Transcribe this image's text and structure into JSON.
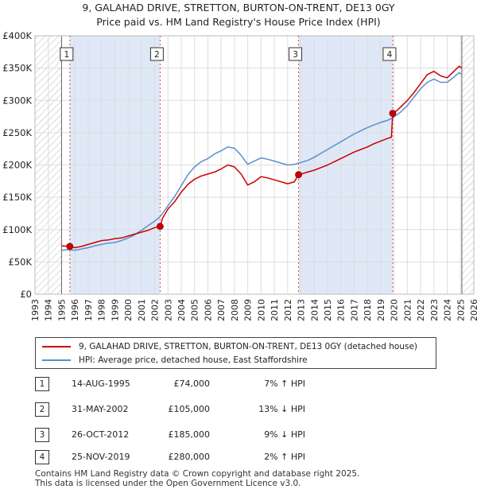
{
  "header": {
    "title": "9, GALAHAD DRIVE, STRETTON, BURTON-ON-TRENT, DE13 0GY",
    "subtitle": "Price paid vs. HM Land Registry's House Price Index (HPI)"
  },
  "colors": {
    "property": "#cc0000",
    "hpi": "#5b8fd0",
    "grid": "#dddddd",
    "shade": "#dfe8f6",
    "marker_line": "#dd4444"
  },
  "chart_data": {
    "type": "line",
    "title": "9, GALAHAD DRIVE, STRETTON, BURTON-ON-TRENT, DE13 0GY",
    "xlim": [
      1993,
      2026
    ],
    "ylim": [
      0,
      400000
    ],
    "x_ticks": [
      "1993",
      "1994",
      "1995",
      "1996",
      "1997",
      "1998",
      "1999",
      "2000",
      "2001",
      "2002",
      "2003",
      "2004",
      "2005",
      "2006",
      "2007",
      "2008",
      "2009",
      "2010",
      "2011",
      "2012",
      "2013",
      "2014",
      "2015",
      "2016",
      "2017",
      "2018",
      "2019",
      "2020",
      "2021",
      "2022",
      "2023",
      "2024",
      "2025",
      "2026"
    ],
    "y_ticks": [
      {
        "value": 0,
        "label": "£0"
      },
      {
        "value": 50000,
        "label": "£50K"
      },
      {
        "value": 100000,
        "label": "£100K"
      },
      {
        "value": 150000,
        "label": "£150K"
      },
      {
        "value": 200000,
        "label": "£200K"
      },
      {
        "value": 250000,
        "label": "£250K"
      },
      {
        "value": 300000,
        "label": "£300K"
      },
      {
        "value": 350000,
        "label": "£350K"
      },
      {
        "value": 400000,
        "label": "£400K"
      }
    ],
    "hatched_ranges": [
      [
        1993,
        1995.0
      ],
      [
        2025.1,
        2026
      ]
    ],
    "shaded_ranges": [
      [
        1995.62,
        2002.41
      ],
      [
        2012.82,
        2019.9
      ]
    ],
    "series": [
      {
        "name": "9, GALAHAD DRIVE, STRETTON, BURTON-ON-TRENT, DE13 0GY (detached house)",
        "color": "#cc0000",
        "points": [
          [
            1995.0,
            75000
          ],
          [
            1995.62,
            74000
          ],
          [
            1996.0,
            72000
          ],
          [
            1996.5,
            74000
          ],
          [
            1997.0,
            77000
          ],
          [
            1997.5,
            80000
          ],
          [
            1998.0,
            83000
          ],
          [
            1998.5,
            84000
          ],
          [
            1999.0,
            86000
          ],
          [
            1999.5,
            87000
          ],
          [
            2000.0,
            90000
          ],
          [
            2000.5,
            93000
          ],
          [
            2001.0,
            96000
          ],
          [
            2001.5,
            99000
          ],
          [
            2002.0,
            103000
          ],
          [
            2002.41,
            105000
          ],
          [
            2002.6,
            118000
          ],
          [
            2003.0,
            132000
          ],
          [
            2003.5,
            143000
          ],
          [
            2004.0,
            158000
          ],
          [
            2004.5,
            170000
          ],
          [
            2005.0,
            178000
          ],
          [
            2005.5,
            183000
          ],
          [
            2006.0,
            186000
          ],
          [
            2006.5,
            189000
          ],
          [
            2007.0,
            194000
          ],
          [
            2007.5,
            200000
          ],
          [
            2008.0,
            197000
          ],
          [
            2008.5,
            186000
          ],
          [
            2009.0,
            169000
          ],
          [
            2009.5,
            174000
          ],
          [
            2010.0,
            182000
          ],
          [
            2010.5,
            180000
          ],
          [
            2011.0,
            177000
          ],
          [
            2011.5,
            174000
          ],
          [
            2012.0,
            171000
          ],
          [
            2012.5,
            174000
          ],
          [
            2012.82,
            185000
          ],
          [
            2013.0,
            186000
          ],
          [
            2013.5,
            189000
          ],
          [
            2014.0,
            192000
          ],
          [
            2014.5,
            196000
          ],
          [
            2015.0,
            200000
          ],
          [
            2015.5,
            205000
          ],
          [
            2016.0,
            210000
          ],
          [
            2016.5,
            215000
          ],
          [
            2017.0,
            220000
          ],
          [
            2017.5,
            224000
          ],
          [
            2018.0,
            228000
          ],
          [
            2018.5,
            233000
          ],
          [
            2019.0,
            237000
          ],
          [
            2019.5,
            241000
          ],
          [
            2019.8,
            243000
          ],
          [
            2019.9,
            280000
          ],
          [
            2020.2,
            284000
          ],
          [
            2020.6,
            292000
          ],
          [
            2021.0,
            300000
          ],
          [
            2021.5,
            312000
          ],
          [
            2022.0,
            326000
          ],
          [
            2022.5,
            340000
          ],
          [
            2023.0,
            345000
          ],
          [
            2023.5,
            338000
          ],
          [
            2024.0,
            335000
          ],
          [
            2024.5,
            345000
          ],
          [
            2024.9,
            353000
          ],
          [
            2025.1,
            350000
          ]
        ]
      },
      {
        "name": "HPI: Average price, detached house, East Staffordshire",
        "color": "#5b8fd0",
        "points": [
          [
            1995.0,
            68000
          ],
          [
            1995.62,
            69000
          ],
          [
            1996.0,
            68000
          ],
          [
            1996.5,
            70000
          ],
          [
            1997.0,
            72000
          ],
          [
            1997.5,
            75000
          ],
          [
            1998.0,
            77000
          ],
          [
            1998.5,
            79000
          ],
          [
            1999.0,
            80000
          ],
          [
            1999.5,
            83000
          ],
          [
            2000.0,
            87000
          ],
          [
            2000.5,
            92000
          ],
          [
            2001.0,
            99000
          ],
          [
            2001.5,
            106000
          ],
          [
            2002.0,
            113000
          ],
          [
            2002.41,
            120000
          ],
          [
            2003.0,
            137000
          ],
          [
            2003.5,
            151000
          ],
          [
            2004.0,
            168000
          ],
          [
            2004.5,
            185000
          ],
          [
            2005.0,
            197000
          ],
          [
            2005.5,
            205000
          ],
          [
            2006.0,
            210000
          ],
          [
            2006.5,
            217000
          ],
          [
            2007.0,
            222000
          ],
          [
            2007.5,
            228000
          ],
          [
            2008.0,
            226000
          ],
          [
            2008.5,
            215000
          ],
          [
            2009.0,
            201000
          ],
          [
            2009.5,
            206000
          ],
          [
            2010.0,
            211000
          ],
          [
            2010.5,
            209000
          ],
          [
            2011.0,
            206000
          ],
          [
            2011.5,
            203000
          ],
          [
            2012.0,
            200000
          ],
          [
            2012.5,
            201000
          ],
          [
            2012.82,
            203000
          ],
          [
            2013.0,
            204000
          ],
          [
            2013.5,
            207000
          ],
          [
            2014.0,
            212000
          ],
          [
            2014.5,
            218000
          ],
          [
            2015.0,
            224000
          ],
          [
            2015.5,
            230000
          ],
          [
            2016.0,
            236000
          ],
          [
            2016.5,
            242000
          ],
          [
            2017.0,
            248000
          ],
          [
            2017.5,
            253000
          ],
          [
            2018.0,
            258000
          ],
          [
            2018.5,
            262000
          ],
          [
            2019.0,
            266000
          ],
          [
            2019.5,
            269000
          ],
          [
            2019.9,
            273000
          ],
          [
            2020.5,
            282000
          ],
          [
            2021.0,
            292000
          ],
          [
            2021.5,
            305000
          ],
          [
            2022.0,
            318000
          ],
          [
            2022.5,
            328000
          ],
          [
            2023.0,
            333000
          ],
          [
            2023.5,
            328000
          ],
          [
            2024.0,
            328000
          ],
          [
            2024.5,
            336000
          ],
          [
            2024.9,
            343000
          ],
          [
            2025.1,
            340000
          ]
        ]
      }
    ],
    "sales": [
      {
        "num": "1",
        "x": 1995.62,
        "price": 74000
      },
      {
        "num": "2",
        "x": 2002.41,
        "price": 105000
      },
      {
        "num": "3",
        "x": 2012.82,
        "price": 185000
      },
      {
        "num": "4",
        "x": 2019.9,
        "price": 280000
      }
    ]
  },
  "legend": {
    "property_label": "9, GALAHAD DRIVE, STRETTON, BURTON-ON-TRENT, DE13 0GY (detached house)",
    "hpi_label": "HPI: Average price, detached house, East Staffordshire"
  },
  "sales_table": [
    {
      "num": "1",
      "date": "14-AUG-1995",
      "price": "£74,000",
      "hpi": "7% ↑ HPI"
    },
    {
      "num": "2",
      "date": "31-MAY-2002",
      "price": "£105,000",
      "hpi": "13% ↓ HPI"
    },
    {
      "num": "3",
      "date": "26-OCT-2012",
      "price": "£185,000",
      "hpi": "9% ↓ HPI"
    },
    {
      "num": "4",
      "date": "25-NOV-2019",
      "price": "£280,000",
      "hpi": "2% ↑ HPI"
    }
  ],
  "footer": {
    "line1": "Contains HM Land Registry data © Crown copyright and database right 2025.",
    "line2": "This data is licensed under the Open Government Licence v3.0."
  }
}
